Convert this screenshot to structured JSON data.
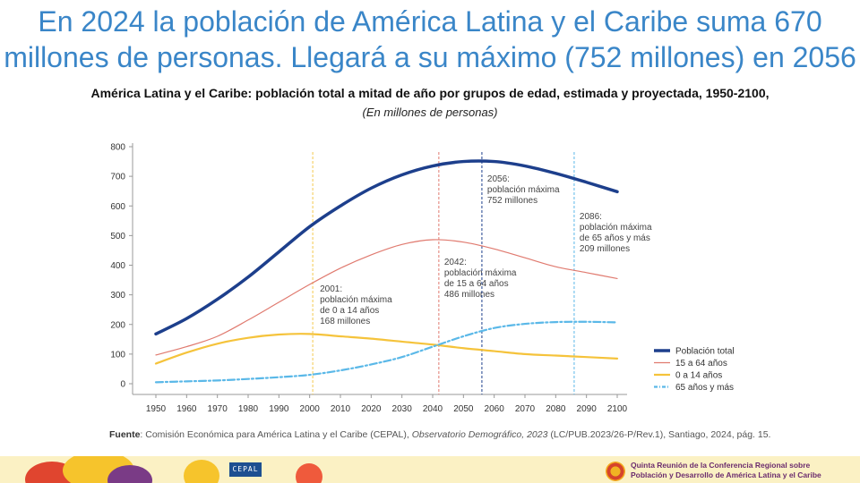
{
  "header": {
    "title_line1": "En 2024 la población de América Latina y el Caribe suma 670",
    "title_line2": "millones de personas. Llegará a su máximo (752 millones) en 2056"
  },
  "chart_data": {
    "type": "line",
    "title": "América Latina y el Caribe: población total a mitad de año por grupos de edad, estimada y proyectada, 1950-2100,",
    "subtitle": "(En millones de personas)",
    "xlim": [
      1950,
      2100
    ],
    "ylim": [
      0,
      800
    ],
    "xticks": [
      1950,
      1960,
      1970,
      1980,
      1990,
      2000,
      2010,
      2020,
      2030,
      2040,
      2050,
      2060,
      2070,
      2080,
      2090,
      2100
    ],
    "yticks": [
      0,
      100,
      200,
      300,
      400,
      500,
      600,
      700,
      800
    ],
    "legend_position": "bottom-right",
    "grid": false,
    "x": [
      1950,
      1960,
      1970,
      1980,
      1990,
      2000,
      2010,
      2020,
      2030,
      2040,
      2050,
      2060,
      2070,
      2080,
      2090,
      2100
    ],
    "series": [
      {
        "name": "Población total",
        "color": "#1d3f8c",
        "style": "solid-thick",
        "values": [
          168,
          220,
          285,
          360,
          445,
          530,
          600,
          660,
          705,
          735,
          750,
          750,
          735,
          710,
          680,
          648
        ]
      },
      {
        "name": "15 a 64 años",
        "color": "#e07a6f",
        "style": "solid-thin",
        "values": [
          97,
          125,
          160,
          215,
          275,
          335,
          390,
          435,
          470,
          486,
          478,
          455,
          425,
          395,
          375,
          355
        ]
      },
      {
        "name": "0 a 14 años",
        "color": "#f5c33b",
        "style": "solid",
        "values": [
          68,
          105,
          135,
          155,
          166,
          168,
          160,
          152,
          142,
          132,
          120,
          110,
          100,
          95,
          90,
          85
        ]
      },
      {
        "name": "65 años y más",
        "color": "#5ab8e8",
        "style": "dash-dot",
        "values": [
          5,
          8,
          11,
          16,
          22,
          30,
          45,
          65,
          90,
          125,
          160,
          188,
          202,
          208,
          209,
          207
        ]
      }
    ],
    "markers": [
      {
        "year": 2001,
        "color": "#f2c94c",
        "label": [
          "2001:",
          "población máxima",
          "de 0 a 14 años",
          "168 millones"
        ]
      },
      {
        "year": 2042,
        "color": "#e07a6f",
        "label": [
          "2042:",
          "población máxima",
          "de 15 a 64 años",
          "486 millones"
        ]
      },
      {
        "year": 2056,
        "color": "#1d3f8c",
        "label": [
          "2056:",
          "población máxima",
          "752 millones"
        ]
      },
      {
        "year": 2086,
        "color": "#5ab8e8",
        "label": [
          "2086:",
          "población máxima",
          "de 65 años y más",
          "209 millones"
        ]
      }
    ]
  },
  "source": {
    "label": "Fuente",
    "text_before": ": Comisión Económica para América Latina y el Caribe (CEPAL), ",
    "text_italic": "Observatorio Demográfico, 2023",
    "text_after": " (LC/PUB.2023/26-P/Rev.1), Santiago, 2024, pág. 15."
  },
  "footer": {
    "logo_text": "CEPAL",
    "conference_line1": "Quinta Reunión de la Conferencia Regional sobre",
    "conference_line2": "Población y Desarrollo de América Latina y el Caribe"
  }
}
